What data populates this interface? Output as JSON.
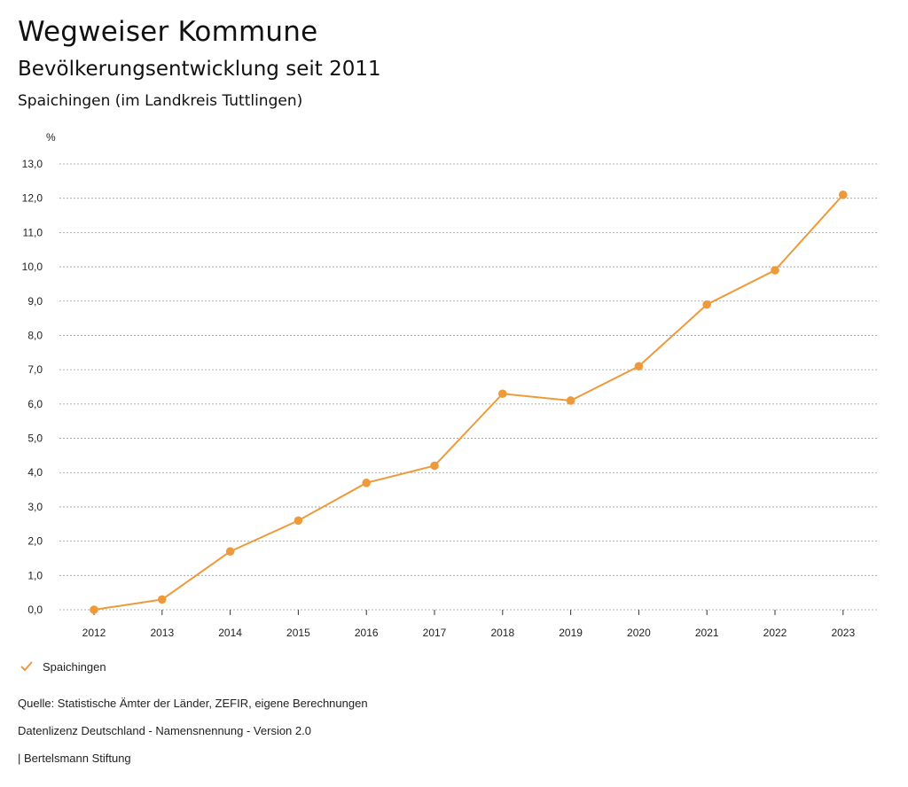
{
  "header": {
    "title": "Wegweiser Kommune",
    "subtitle": "Bevölkerungsentwicklung seit 2011",
    "region": "Spaichingen (im Landkreis Tuttlingen)"
  },
  "colors": {
    "series": "#ee9a3a",
    "grid": "#9a9a9a",
    "axis": "#333333"
  },
  "chart_data": {
    "type": "line",
    "title": "Bevölkerungsentwicklung seit 2011",
    "ylabel": "%",
    "xlabel": "",
    "categories": [
      "2012",
      "2013",
      "2014",
      "2015",
      "2016",
      "2017",
      "2018",
      "2019",
      "2020",
      "2021",
      "2022",
      "2023"
    ],
    "series": [
      {
        "name": "Spaichingen",
        "values": [
          0.0,
          0.3,
          1.7,
          2.6,
          3.7,
          4.2,
          6.3,
          6.1,
          7.1,
          8.9,
          9.9,
          12.1
        ]
      }
    ],
    "ylim": [
      0,
      13
    ],
    "yticks": [
      "0,0",
      "1,0",
      "2,0",
      "3,0",
      "4,0",
      "5,0",
      "6,0",
      "7,0",
      "8,0",
      "9,0",
      "10,0",
      "11,0",
      "12,0",
      "13,0"
    ],
    "grid": true,
    "legend": "bottom-left"
  },
  "legend": {
    "label": "Spaichingen"
  },
  "footer": {
    "source": "Quelle: Statistische Ämter der Länder, ZEFIR, eigene Berechnungen",
    "license": "Datenlizenz Deutschland - Namensnennung - Version 2.0",
    "publisher": "| Bertelsmann Stiftung"
  }
}
